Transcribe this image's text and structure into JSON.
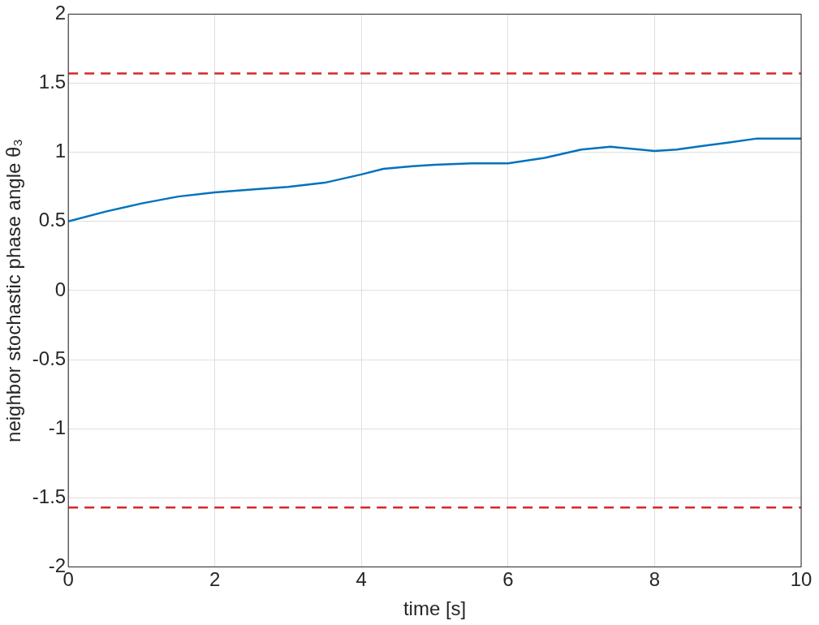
{
  "chart_data": {
    "type": "line",
    "xlabel": "time [s]",
    "ylabel": "neighbor stochastic phase angle θ₃",
    "x": [
      0,
      0.5,
      1,
      1.5,
      2,
      2.5,
      3,
      3.5,
      4,
      4.3,
      4.7,
      5,
      5.5,
      6,
      6.5,
      7,
      7.4,
      7.8,
      8,
      8.3,
      8.7,
      9,
      9.4,
      9.7,
      10
    ],
    "series": [
      {
        "color": "#0072bd",
        "values": [
          0.5,
          0.57,
          0.63,
          0.68,
          0.71,
          0.73,
          0.75,
          0.78,
          0.84,
          0.88,
          0.9,
          0.91,
          0.92,
          0.92,
          0.96,
          1.02,
          1.04,
          1.02,
          1.01,
          1.02,
          1.05,
          1.07,
          1.1,
          1.1,
          1.1
        ]
      }
    ],
    "xlim": [
      0,
      10
    ],
    "xticks": [
      0,
      2,
      4,
      6,
      8,
      10
    ],
    "ylim": [
      -2,
      2
    ],
    "yticks": [
      -2,
      -1.5,
      -1,
      -0.5,
      0,
      0.5,
      1,
      1.5,
      2
    ],
    "ref_lines": [
      {
        "axis": "y",
        "value": 1.57,
        "color": "#d62728",
        "line_style": "dashed"
      },
      {
        "axis": "y",
        "value": -1.57,
        "color": "#d62728",
        "line_style": "dashed"
      }
    ],
    "grid": true,
    "legend": false,
    "marker": "none",
    "line_style": "solid"
  }
}
